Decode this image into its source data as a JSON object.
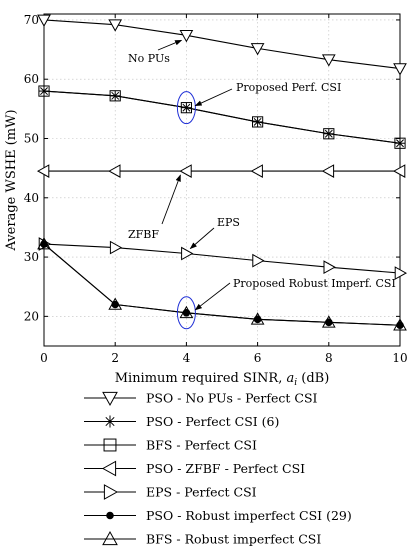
{
  "chart_data": {
    "type": "line",
    "xlabel": "Minimum required SINR, a_i (dB)",
    "xlabel_main": "Minimum required SINR, ",
    "xlabel_var": "a",
    "xlabel_sub": "i",
    "xlabel_unit": " (dB)",
    "ylabel": "Average WSHE (mW)",
    "xlim": [
      0,
      10
    ],
    "ylim": [
      15,
      71
    ],
    "xticks": [
      0,
      2,
      4,
      6,
      8,
      10
    ],
    "yticks": [
      20,
      30,
      40,
      50,
      60,
      70
    ],
    "grid": true,
    "legend_position": "below",
    "series": [
      {
        "name": "PSO - No PUs - Perfect CSI",
        "marker": "triangle-down",
        "x": [
          0,
          2,
          4,
          6,
          8,
          10
        ],
        "y": [
          70.0,
          69.2,
          67.4,
          65.2,
          63.3,
          61.8
        ]
      },
      {
        "name": "PSO - Perfect CSI (6)",
        "marker": "asterisk",
        "x": [
          0,
          2,
          4,
          6,
          8,
          10
        ],
        "y": [
          58.0,
          57.2,
          55.2,
          52.8,
          50.8,
          49.2
        ]
      },
      {
        "name": "BFS - Perfect CSI",
        "marker": "square",
        "x": [
          0,
          2,
          4,
          6,
          8,
          10
        ],
        "y": [
          58.0,
          57.2,
          55.2,
          52.8,
          50.8,
          49.2
        ]
      },
      {
        "name": "PSO - ZFBF - Perfect CSI",
        "marker": "triangle-left",
        "x": [
          0,
          2,
          4,
          6,
          8,
          10
        ],
        "y": [
          44.5,
          44.5,
          44.5,
          44.5,
          44.5,
          44.5
        ]
      },
      {
        "name": "EPS - Perfect CSI",
        "marker": "triangle-right",
        "x": [
          0,
          2,
          4,
          6,
          8,
          10
        ],
        "y": [
          32.2,
          31.6,
          30.6,
          29.4,
          28.3,
          27.3
        ]
      },
      {
        "name": "PSO - Robust imperfect CSI (29)",
        "marker": "dot",
        "x": [
          0,
          2,
          4,
          6,
          8,
          10
        ],
        "y": [
          32.2,
          22.0,
          20.6,
          19.5,
          19.0,
          18.5
        ]
      },
      {
        "name": "BFS - Robust imperfect CSI",
        "marker": "triangle-up",
        "x": [
          0,
          2,
          4,
          6,
          8,
          10
        ],
        "y": [
          32.2,
          22.0,
          20.6,
          19.5,
          19.0,
          18.5
        ]
      }
    ],
    "annotations": [
      {
        "text": "No PUs",
        "point_x": 4,
        "point_y": 67.4,
        "circled": false
      },
      {
        "text": "Proposed Perf. CSI",
        "point_x": 4,
        "point_y": 55.2,
        "circled": true
      },
      {
        "text": "ZFBF",
        "point_x": 4,
        "point_y": 44.5,
        "circled": false
      },
      {
        "text": "EPS",
        "point_x": 4,
        "point_y": 30.6,
        "circled": false
      },
      {
        "text": "Proposed Robust Imperf. CSI",
        "point_x": 4,
        "point_y": 20.6,
        "circled": true
      }
    ],
    "colors": {
      "line": "#000000",
      "grid": "#bfbfbf",
      "circle": "#1f2fd6"
    }
  }
}
